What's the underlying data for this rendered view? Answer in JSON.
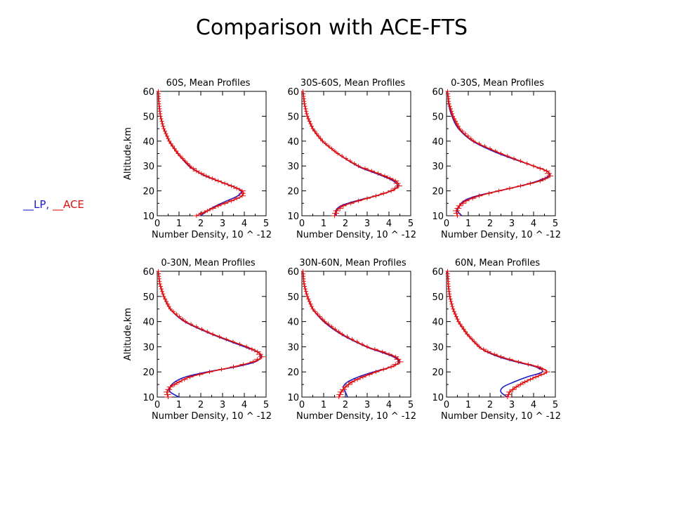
{
  "slide": {
    "title": "Comparison with ACE-FTS",
    "legend": {
      "lp_dash": "__",
      "lp_label": "LP,",
      "ace_dash": "__",
      "ace_label": "ACE"
    }
  },
  "colors": {
    "lp": "#1a1acc",
    "ace": "#e01010"
  },
  "chart_data": [
    {
      "type": "line",
      "title": "60S, Mean Profiles",
      "xlabel": "Number Density, 10^-12",
      "ylabel": "Altitude,km",
      "xlim": [
        0,
        5
      ],
      "ylim": [
        10,
        60
      ],
      "xticks": [
        "0",
        "1",
        "2",
        "3",
        "4",
        "5"
      ],
      "yticks": [
        "10",
        "20",
        "30",
        "40",
        "50",
        "60"
      ],
      "altitude": [
        10,
        12,
        14,
        16,
        18,
        20,
        22,
        24,
        26,
        28,
        30,
        35,
        40,
        45,
        50,
        55,
        60
      ],
      "series": [
        {
          "key": "lp",
          "values": [
            2.0,
            2.3,
            2.7,
            3.2,
            3.7,
            3.85,
            3.4,
            2.8,
            2.2,
            1.8,
            1.45,
            0.95,
            0.55,
            0.3,
            0.15,
            0.08,
            0.05
          ]
        },
        {
          "key": "ace",
          "values": [
            1.8,
            2.3,
            2.8,
            3.4,
            3.9,
            3.9,
            3.4,
            2.8,
            2.25,
            1.8,
            1.5,
            0.95,
            0.55,
            0.3,
            0.15,
            0.08,
            0.05
          ]
        }
      ]
    },
    {
      "type": "line",
      "title": "30S-60S, Mean Profiles",
      "xlabel": "Number Density, 10^-12",
      "ylabel": "",
      "xlim": [
        0,
        5
      ],
      "ylim": [
        10,
        60
      ],
      "xticks": [
        "0",
        "1",
        "2",
        "3",
        "4",
        "5"
      ],
      "yticks": [
        "10",
        "20",
        "30",
        "40",
        "50",
        "60"
      ],
      "altitude": [
        10,
        12,
        14,
        16,
        18,
        20,
        22,
        24,
        26,
        28,
        30,
        35,
        40,
        45,
        50,
        55,
        60
      ],
      "series": [
        {
          "key": "lp",
          "values": [
            1.6,
            1.55,
            1.8,
            2.5,
            3.4,
            4.1,
            4.4,
            4.2,
            3.7,
            3.1,
            2.55,
            1.65,
            0.95,
            0.5,
            0.25,
            0.12,
            0.05
          ]
        },
        {
          "key": "ace",
          "values": [
            1.5,
            1.6,
            1.9,
            2.6,
            3.4,
            4.1,
            4.45,
            4.3,
            3.8,
            3.2,
            2.6,
            1.65,
            0.95,
            0.5,
            0.25,
            0.12,
            0.05
          ]
        }
      ]
    },
    {
      "type": "line",
      "title": "0-30S, Mean Profiles",
      "xlabel": "Number Density, 10^-12",
      "ylabel": "",
      "xlim": [
        0,
        5
      ],
      "ylim": [
        10,
        60
      ],
      "xticks": [
        "0",
        "1",
        "2",
        "3",
        "4",
        "5"
      ],
      "yticks": [
        "10",
        "20",
        "30",
        "40",
        "50",
        "60"
      ],
      "altitude": [
        10,
        12,
        14,
        16,
        18,
        20,
        22,
        24,
        26,
        28,
        30,
        35,
        40,
        45,
        50,
        55,
        60
      ],
      "series": [
        {
          "key": "lp",
          "values": [
            0.7,
            0.5,
            0.6,
            0.8,
            1.4,
            2.4,
            3.4,
            4.2,
            4.7,
            4.6,
            4.0,
            2.4,
            1.2,
            0.55,
            0.25,
            0.1,
            0.05
          ]
        },
        {
          "key": "ace",
          "values": [
            0.5,
            0.45,
            0.6,
            0.9,
            1.5,
            2.4,
            3.4,
            4.3,
            4.75,
            4.6,
            4.0,
            2.5,
            1.25,
            0.6,
            0.3,
            0.12,
            0.05
          ]
        }
      ]
    },
    {
      "type": "line",
      "title": "0-30N, Mean Profiles",
      "xlabel": "Number Density, 10^-12",
      "ylabel": "Altitude,km",
      "xlim": [
        0,
        5
      ],
      "ylim": [
        10,
        60
      ],
      "xticks": [
        "0",
        "1",
        "2",
        "3",
        "4",
        "5"
      ],
      "yticks": [
        "10",
        "20",
        "30",
        "40",
        "50",
        "60"
      ],
      "altitude": [
        10,
        12,
        14,
        16,
        18,
        20,
        22,
        24,
        26,
        28,
        30,
        35,
        40,
        45,
        50,
        55,
        60
      ],
      "series": [
        {
          "key": "lp",
          "values": [
            1.0,
            0.6,
            0.6,
            0.8,
            1.3,
            2.3,
            3.6,
            4.5,
            4.75,
            4.6,
            4.0,
            2.5,
            1.25,
            0.6,
            0.3,
            0.12,
            0.05
          ]
        },
        {
          "key": "ace",
          "values": [
            0.5,
            0.45,
            0.6,
            1.0,
            1.5,
            2.4,
            3.5,
            4.4,
            4.8,
            4.6,
            4.1,
            2.55,
            1.3,
            0.6,
            0.3,
            0.12,
            0.05
          ]
        }
      ]
    },
    {
      "type": "line",
      "title": "30N-60N, Mean Profiles",
      "xlabel": "Number Density, 10^-12",
      "ylabel": "",
      "xlim": [
        0,
        5
      ],
      "ylim": [
        10,
        60
      ],
      "xticks": [
        "0",
        "1",
        "2",
        "3",
        "4",
        "5"
      ],
      "yticks": [
        "10",
        "20",
        "30",
        "40",
        "50",
        "60"
      ],
      "altitude": [
        10,
        12,
        14,
        16,
        18,
        20,
        22,
        24,
        26,
        28,
        30,
        35,
        40,
        45,
        50,
        55,
        60
      ],
      "series": [
        {
          "key": "lp",
          "values": [
            2.1,
            2.0,
            1.9,
            2.1,
            2.6,
            3.3,
            4.1,
            4.45,
            4.2,
            3.6,
            2.95,
            1.8,
            1.0,
            0.5,
            0.25,
            0.1,
            0.05
          ]
        },
        {
          "key": "ace",
          "values": [
            1.7,
            1.8,
            2.0,
            2.3,
            2.8,
            3.4,
            4.1,
            4.5,
            4.3,
            3.7,
            3.0,
            1.85,
            1.05,
            0.5,
            0.25,
            0.1,
            0.05
          ]
        }
      ]
    },
    {
      "type": "line",
      "title": "60N, Mean Profiles",
      "xlabel": "Number Density, 10^-12",
      "ylabel": "",
      "xlim": [
        0,
        5
      ],
      "ylim": [
        10,
        60
      ],
      "xticks": [
        "0",
        "1",
        "2",
        "3",
        "4",
        "5"
      ],
      "yticks": [
        "10",
        "20",
        "30",
        "40",
        "50",
        "60"
      ],
      "altitude": [
        10,
        12,
        14,
        16,
        18,
        20,
        22,
        24,
        26,
        28,
        30,
        35,
        40,
        45,
        50,
        55,
        60
      ],
      "series": [
        {
          "key": "lp",
          "values": [
            2.8,
            2.5,
            2.6,
            3.1,
            3.7,
            4.4,
            4.1,
            3.2,
            2.4,
            1.85,
            1.5,
            0.95,
            0.55,
            0.3,
            0.15,
            0.08,
            0.05
          ]
        },
        {
          "key": "ace",
          "values": [
            2.8,
            2.9,
            3.2,
            3.6,
            4.1,
            4.6,
            4.2,
            3.3,
            2.5,
            1.9,
            1.5,
            0.95,
            0.55,
            0.3,
            0.15,
            0.08,
            0.05
          ]
        }
      ]
    }
  ]
}
